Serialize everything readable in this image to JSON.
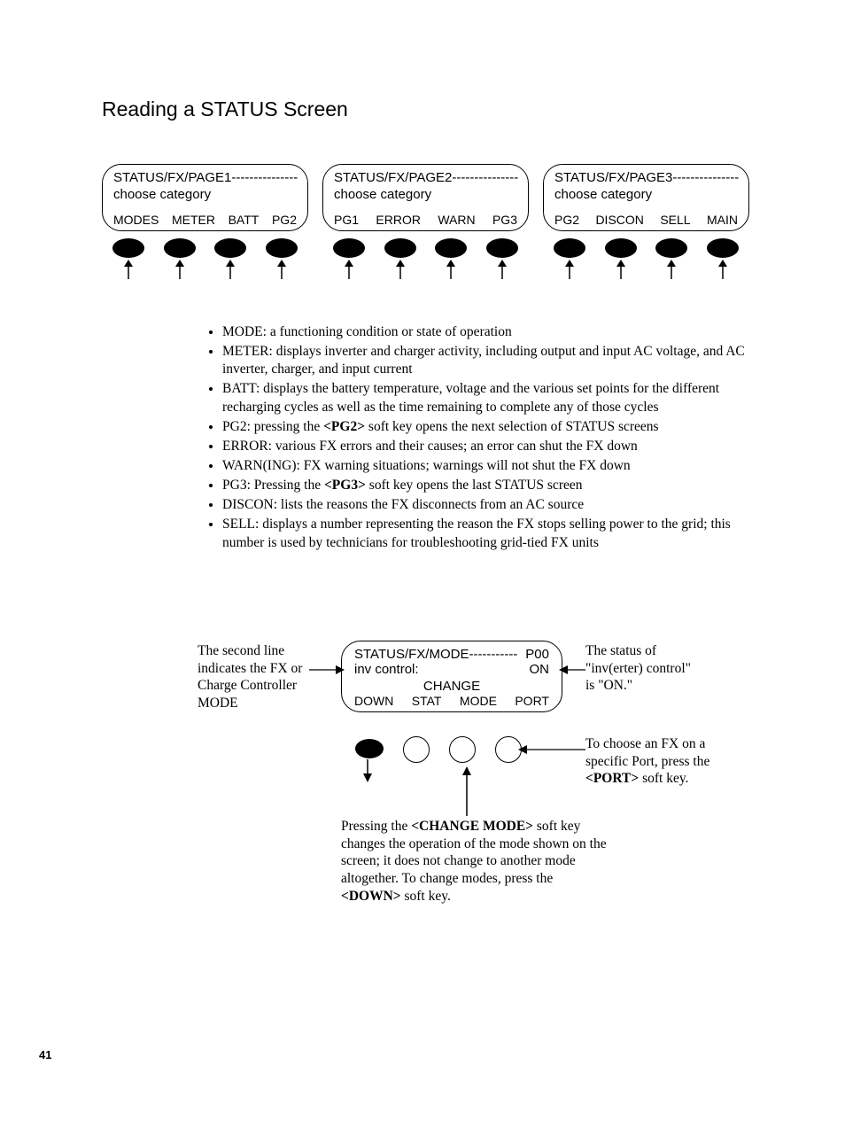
{
  "heading": "Reading a STATUS Screen",
  "page_number": "41",
  "lcds": [
    {
      "line1": "STATUS/FX/PAGE1---------------",
      "line2": "choose category",
      "buttons": [
        "MODES",
        "METER",
        "BATT",
        "PG2"
      ]
    },
    {
      "line1": "STATUS/FX/PAGE2---------------",
      "line2": "choose category",
      "buttons": [
        "PG1",
        "ERROR",
        "WARN",
        "PG3"
      ]
    },
    {
      "line1": "STATUS/FX/PAGE3---------------",
      "line2": "choose category",
      "buttons": [
        "PG2",
        "DISCON",
        "SELL",
        "MAIN"
      ]
    }
  ],
  "bullets": [
    "MODE: a functioning condition or state of operation",
    "METER: displays inverter and charger activity, including output and input AC voltage, and AC inverter, charger, and input current",
    "BATT: displays the battery temperature, voltage and the various set points for the different recharging cycles as well as the time remaining to complete any of those cycles",
    "PG2: pressing the <b>&lt;PG2&gt;</b> soft key opens the next selection of STATUS screens",
    "ERROR: various FX errors and their causes; an error can shut the FX down",
    "WARN(ING): FX warning situations; warnings will not shut the FX down",
    "PG3: Pressing the <b>&lt;PG3&gt;</b> soft key opens the last STATUS screen",
    "DISCON: lists the reasons the FX disconnects from an AC source",
    "SELL: displays a number representing the reason the FX stops selling power to the grid; this number is used by technicians for troubleshooting grid-tied FX units"
  ],
  "mode_lcd": {
    "line1_left": "STATUS/FX/MODE-----------",
    "line1_right": "P00",
    "line2_left": "inv control:",
    "line2_right": "ON",
    "line3": "CHANGE",
    "buttons": [
      "DOWN",
      "STAT",
      "MODE",
      "PORT"
    ]
  },
  "callouts": {
    "left": "The second line indicates the FX or Charge Controller MODE",
    "right_top": "The status of \"inv(erter) control\" is \"ON.\"",
    "right_mid": "To choose an FX on a specific Port, press the <b>&lt;PORT&gt;</b> soft key.",
    "bottom": "Pressing the <b>&lt;CHANGE MODE&gt;</b> soft key changes the operation of the mode shown on the screen; it does not change to another mode altogether. To change modes, press the <b>&lt;DOWN&gt;</b> soft key."
  }
}
